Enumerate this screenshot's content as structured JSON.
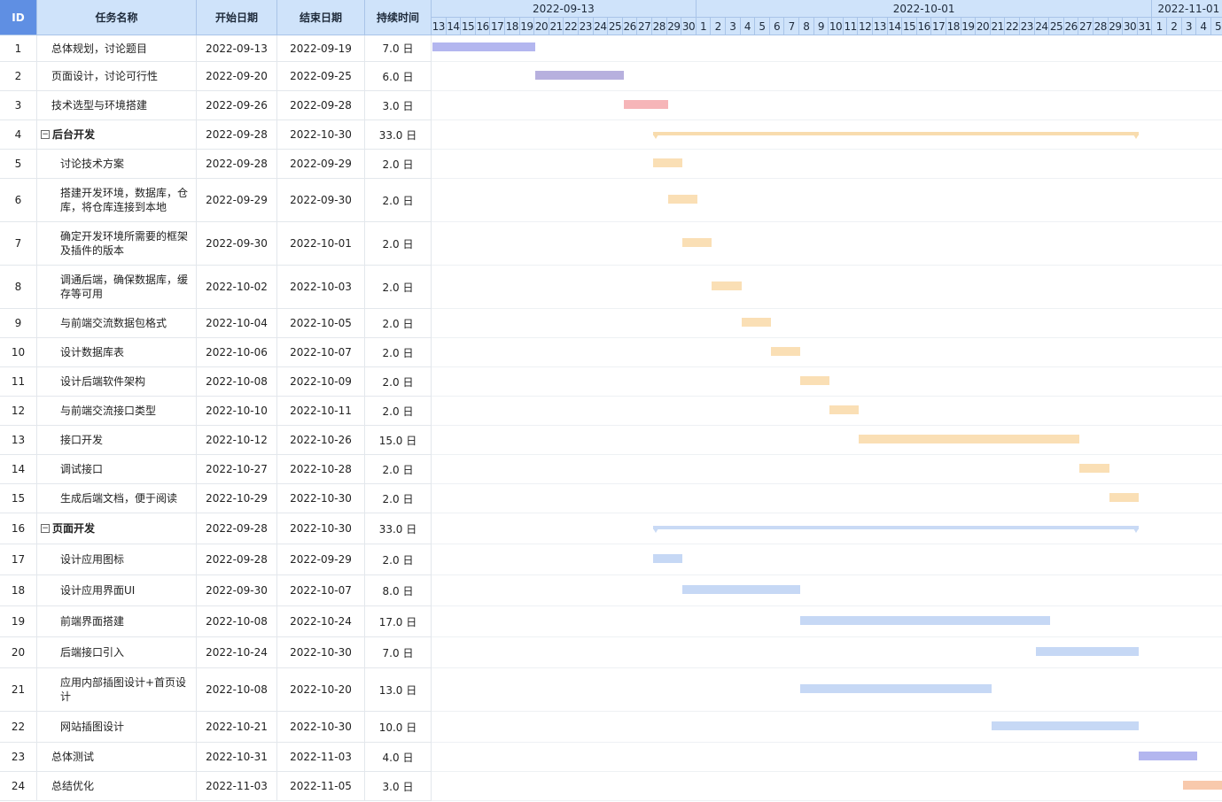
{
  "columns": {
    "id": "ID",
    "name": "任务名称",
    "start": "开始日期",
    "end": "结束日期",
    "duration": "持续时间"
  },
  "timeline": {
    "start_date": "2022-09-13",
    "months": [
      {
        "label": "2022-09-13",
        "from": 0,
        "days": 18
      },
      {
        "label": "2022-10-01",
        "from": 18,
        "days": 31
      },
      {
        "label": "2022-11-01",
        "from": 49,
        "days": 5
      }
    ],
    "days": [
      "13",
      "14",
      "15",
      "16",
      "17",
      "18",
      "19",
      "20",
      "21",
      "22",
      "23",
      "24",
      "25",
      "26",
      "27",
      "28",
      "29",
      "30",
      "1",
      "2",
      "3",
      "4",
      "5",
      "6",
      "7",
      "8",
      "9",
      "10",
      "11",
      "12",
      "13",
      "14",
      "15",
      "16",
      "17",
      "18",
      "19",
      "20",
      "21",
      "22",
      "23",
      "24",
      "25",
      "26",
      "27",
      "28",
      "29",
      "30",
      "31",
      "1",
      "2",
      "3",
      "4",
      "5"
    ]
  },
  "tasks": [
    {
      "id": "1",
      "name": "总体规划，讨论题目",
      "start": "2022-09-13",
      "end": "2022-09-19",
      "duration": "7.0 日",
      "level": 0,
      "color": "#b3b6ef",
      "offset": 0,
      "span": 7
    },
    {
      "id": "2",
      "name": "页面设计，讨论可行性",
      "start": "2022-09-20",
      "end": "2022-09-25",
      "duration": "6.0 日",
      "level": 0,
      "color": "#b7b0de",
      "offset": 7,
      "span": 6
    },
    {
      "id": "3",
      "name": "技术选型与环境搭建",
      "start": "2022-09-26",
      "end": "2022-09-28",
      "duration": "3.0 日",
      "level": 0,
      "color": "#f6b5b8",
      "offset": 13,
      "span": 3
    },
    {
      "id": "4",
      "name": "后台开发",
      "start": "2022-09-28",
      "end": "2022-10-30",
      "duration": "33.0 日",
      "level": 0,
      "summary": true,
      "color": "#f8dcae",
      "offset": 15,
      "span": 33
    },
    {
      "id": "5",
      "name": "讨论技术方案",
      "start": "2022-09-28",
      "end": "2022-09-29",
      "duration": "2.0 日",
      "level": 1,
      "color": "#fadfb5",
      "offset": 15,
      "span": 2
    },
    {
      "id": "6",
      "name": "搭建开发环境，数据库，仓库，将仓库连接到本地",
      "start": "2022-09-29",
      "end": "2022-09-30",
      "duration": "2.0 日",
      "level": 1,
      "color": "#fadfb5",
      "offset": 16,
      "span": 2
    },
    {
      "id": "7",
      "name": "确定开发环境所需要的框架及插件的版本",
      "start": "2022-09-30",
      "end": "2022-10-01",
      "duration": "2.0 日",
      "level": 1,
      "color": "#fadfb5",
      "offset": 17,
      "span": 2
    },
    {
      "id": "8",
      "name": "调通后端，确保数据库，缓存等可用",
      "start": "2022-10-02",
      "end": "2022-10-03",
      "duration": "2.0 日",
      "level": 1,
      "color": "#fadfb5",
      "offset": 19,
      "span": 2
    },
    {
      "id": "9",
      "name": "与前端交流数据包格式",
      "start": "2022-10-04",
      "end": "2022-10-05",
      "duration": "2.0 日",
      "level": 1,
      "color": "#fadfb5",
      "offset": 21,
      "span": 2
    },
    {
      "id": "10",
      "name": "设计数据库表",
      "start": "2022-10-06",
      "end": "2022-10-07",
      "duration": "2.0 日",
      "level": 1,
      "color": "#fadfb5",
      "offset": 23,
      "span": 2
    },
    {
      "id": "11",
      "name": "设计后端软件架构",
      "start": "2022-10-08",
      "end": "2022-10-09",
      "duration": "2.0 日",
      "level": 1,
      "color": "#fadfb5",
      "offset": 25,
      "span": 2
    },
    {
      "id": "12",
      "name": "与前端交流接口类型",
      "start": "2022-10-10",
      "end": "2022-10-11",
      "duration": "2.0 日",
      "level": 1,
      "color": "#fadfb5",
      "offset": 27,
      "span": 2
    },
    {
      "id": "13",
      "name": "接口开发",
      "start": "2022-10-12",
      "end": "2022-10-26",
      "duration": "15.0 日",
      "level": 1,
      "color": "#fadfb5",
      "offset": 29,
      "span": 15
    },
    {
      "id": "14",
      "name": "调试接口",
      "start": "2022-10-27",
      "end": "2022-10-28",
      "duration": "2.0 日",
      "level": 1,
      "color": "#fadfb5",
      "offset": 44,
      "span": 2
    },
    {
      "id": "15",
      "name": "生成后端文档，便于阅读",
      "start": "2022-10-29",
      "end": "2022-10-30",
      "duration": "2.0 日",
      "level": 1,
      "color": "#fadfb5",
      "offset": 46,
      "span": 2
    },
    {
      "id": "16",
      "name": "页面开发",
      "start": "2022-09-28",
      "end": "2022-10-30",
      "duration": "33.0 日",
      "level": 0,
      "summary": true,
      "color": "#c9daf5",
      "offset": 15,
      "span": 33
    },
    {
      "id": "17",
      "name": "设计应用图标",
      "start": "2022-09-28",
      "end": "2022-09-29",
      "duration": "2.0 日",
      "level": 1,
      "color": "#c6d8f5",
      "offset": 15,
      "span": 2
    },
    {
      "id": "18",
      "name": "设计应用界面UI",
      "start": "2022-09-30",
      "end": "2022-10-07",
      "duration": "8.0 日",
      "level": 1,
      "color": "#c6d8f5",
      "offset": 17,
      "span": 8
    },
    {
      "id": "19",
      "name": "前端界面搭建",
      "start": "2022-10-08",
      "end": "2022-10-24",
      "duration": "17.0 日",
      "level": 1,
      "color": "#c6d8f5",
      "offset": 25,
      "span": 17
    },
    {
      "id": "20",
      "name": "后端接口引入",
      "start": "2022-10-24",
      "end": "2022-10-30",
      "duration": "7.0 日",
      "level": 1,
      "color": "#c6d8f5",
      "offset": 41,
      "span": 7
    },
    {
      "id": "21",
      "name": "应用内部插图设计+首页设计",
      "start": "2022-10-08",
      "end": "2022-10-20",
      "duration": "13.0 日",
      "level": 1,
      "color": "#c6d8f5",
      "offset": 25,
      "span": 13
    },
    {
      "id": "22",
      "name": "网站插图设计",
      "start": "2022-10-21",
      "end": "2022-10-30",
      "duration": "10.0 日",
      "level": 1,
      "color": "#c6d8f5",
      "offset": 38,
      "span": 10
    },
    {
      "id": "23",
      "name": "总体测试",
      "start": "2022-10-31",
      "end": "2022-11-03",
      "duration": "4.0 日",
      "level": 0,
      "color": "#b3b6ef",
      "offset": 48,
      "span": 4
    },
    {
      "id": "24",
      "name": "总结优化",
      "start": "2022-11-03",
      "end": "2022-11-05",
      "duration": "3.0 日",
      "level": 0,
      "color": "#f8c9ac",
      "offset": 51,
      "span": 3
    }
  ]
}
